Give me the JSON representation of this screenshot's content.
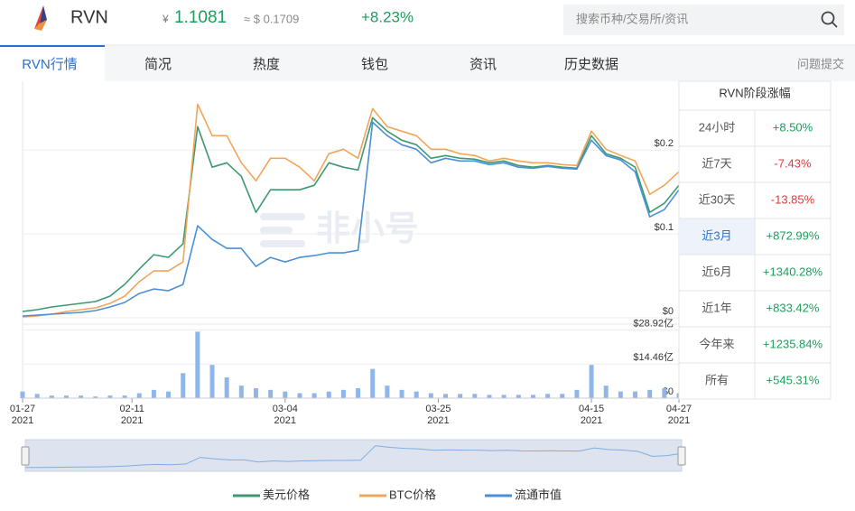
{
  "header": {
    "coin": "RVN",
    "currency_symbol": "¥",
    "price": "1.1081",
    "usd_price": "≈ $ 0.1709",
    "change": "+8.23%",
    "search_placeholder": "搜索币种/交易所/资讯"
  },
  "tabs": [
    "RVN行情",
    "简况",
    "热度",
    "钱包",
    "资讯",
    "历史数据"
  ],
  "active_tab": 0,
  "feedback": "问题提交",
  "watermark": "非小号",
  "stage_table": {
    "title": "RVN阶段涨幅",
    "rows": [
      {
        "period": "24小时",
        "change": "+8.50%"
      },
      {
        "period": "近7天",
        "change": "-7.43%"
      },
      {
        "period": "近30天",
        "change": "-13.85%"
      },
      {
        "period": "近3月",
        "change": "+872.99%",
        "selected": true
      },
      {
        "period": "近6月",
        "change": "+1340.28%"
      },
      {
        "period": "近1年",
        "change": "+833.42%"
      },
      {
        "period": "今年来",
        "change": "+1235.84%"
      },
      {
        "period": "所有",
        "change": "+545.31%"
      }
    ]
  },
  "chart_data": [
    {
      "type": "line",
      "x": [
        "2021-01-27",
        "2021-01-29",
        "2021-01-31",
        "2021-02-02",
        "2021-02-04",
        "2021-02-06",
        "2021-02-08",
        "2021-02-10",
        "2021-02-12",
        "2021-02-14",
        "2021-02-16",
        "2021-02-18",
        "2021-02-20",
        "2021-02-22",
        "2021-02-24",
        "2021-02-26",
        "2021-02-28",
        "2021-03-02",
        "2021-03-04",
        "2021-03-06",
        "2021-03-08",
        "2021-03-10",
        "2021-03-12",
        "2021-03-14",
        "2021-03-16",
        "2021-03-18",
        "2021-03-20",
        "2021-03-22",
        "2021-03-24",
        "2021-03-26",
        "2021-03-28",
        "2021-03-30",
        "2021-04-01",
        "2021-04-03",
        "2021-04-05",
        "2021-04-07",
        "2021-04-09",
        "2021-04-11",
        "2021-04-13",
        "2021-04-15",
        "2021-04-17",
        "2021-04-19",
        "2021-04-21",
        "2021-04-23",
        "2021-04-25",
        "2021-04-27"
      ],
      "xlim": [
        "2021-01-27",
        "2021-04-27"
      ],
      "xticks": [
        {
          "value": "2021-01-27",
          "label": "01-27",
          "year": "2021"
        },
        {
          "value": "2021-02-11",
          "label": "02-11",
          "year": "2021"
        },
        {
          "value": "2021-03-04",
          "label": "03-04",
          "year": "2021"
        },
        {
          "value": "2021-03-25",
          "label": "03-25",
          "year": "2021"
        },
        {
          "value": "2021-04-15",
          "label": "04-15",
          "year": "2021"
        },
        {
          "value": "2021-04-27",
          "label": "04-27",
          "year": "2021"
        }
      ],
      "ylim": [
        0,
        0.28
      ],
      "yticks": [
        {
          "value": 0,
          "label": "$0"
        },
        {
          "value": 0.1,
          "label": "$0.1"
        },
        {
          "value": 0.2,
          "label": "$0.2"
        }
      ],
      "grid": true,
      "series": [
        {
          "name": "美元价格",
          "color": "#3d9970",
          "values": [
            0.0075,
            0.0097,
            0.0129,
            0.0151,
            0.0172,
            0.0194,
            0.0258,
            0.0398,
            0.0581,
            0.0753,
            0.072,
            0.0882,
            0.228,
            0.1796,
            0.1849,
            0.1688,
            0.1258,
            0.1527,
            0.1527,
            0.1527,
            0.1581,
            0.1849,
            0.1796,
            0.1763,
            0.2387,
            0.2226,
            0.2118,
            0.2065,
            0.1903,
            0.1935,
            0.1903,
            0.1892,
            0.1849,
            0.1871,
            0.1817,
            0.1796,
            0.1817,
            0.1796,
            0.1785,
            0.2172,
            0.1957,
            0.1903,
            0.1796,
            0.1258,
            0.1366,
            0.1581
          ]
        },
        {
          "name": "BTC价格",
          "color": "#f0a65a",
          "values": [
            0.0011,
            0.0022,
            0.0043,
            0.0075,
            0.0097,
            0.0118,
            0.0172,
            0.0258,
            0.043,
            0.0559,
            0.0559,
            0.0667,
            0.2548,
            0.2172,
            0.2172,
            0.1849,
            0.1634,
            0.1903,
            0.1903,
            0.1796,
            0.1634,
            0.1957,
            0.2011,
            0.1903,
            0.2495,
            0.228,
            0.2226,
            0.2172,
            0.2011,
            0.2011,
            0.1957,
            0.1935,
            0.1871,
            0.1903,
            0.1871,
            0.1849,
            0.1849,
            0.1828,
            0.1817,
            0.2226,
            0.2011,
            0.1935,
            0.1871,
            0.1473,
            0.1581,
            0.1742
          ]
        },
        {
          "name": "流通市值",
          "color": "#4a8fd8",
          "values": [
            0.0022,
            0.0032,
            0.0043,
            0.0054,
            0.0065,
            0.0086,
            0.0129,
            0.0183,
            0.029,
            0.0344,
            0.0323,
            0.0398,
            0.1097,
            0.0935,
            0.0828,
            0.0828,
            0.0613,
            0.072,
            0.0667,
            0.072,
            0.0742,
            0.0774,
            0.0774,
            0.0806,
            0.2333,
            0.2172,
            0.2065,
            0.2011,
            0.1849,
            0.1903,
            0.1871,
            0.1871,
            0.1828,
            0.1849,
            0.1796,
            0.1785,
            0.1806,
            0.1785,
            0.1774,
            0.2118,
            0.1935,
            0.1882,
            0.1742,
            0.1204,
            0.129,
            0.1527
          ]
        }
      ]
    },
    {
      "type": "bar",
      "color": "#8fb6ea",
      "ylim": [
        0,
        31.4
      ],
      "yticks": [
        {
          "value": 0,
          "label": "$0"
        },
        {
          "value": 14.46,
          "label": "$14.46亿"
        },
        {
          "value": 28.92,
          "label": "$28.92亿"
        }
      ],
      "values": [
        2.8,
        1.8,
        1.1,
        1.1,
        1.1,
        0.7,
        1.1,
        1.1,
        2.1,
        3.5,
        2.8,
        10.6,
        28.2,
        14.1,
        8.8,
        5.3,
        4.2,
        3.5,
        2.8,
        2.1,
        2.1,
        2.8,
        3.5,
        4.2,
        12.4,
        5.3,
        3.5,
        2.8,
        2.1,
        1.8,
        1.8,
        1.8,
        1.4,
        1.4,
        1.4,
        1.4,
        1.8,
        1.8,
        3.5,
        14.1,
        5.3,
        2.8,
        2.8,
        3.5,
        4.2,
        2.1
      ]
    }
  ]
}
